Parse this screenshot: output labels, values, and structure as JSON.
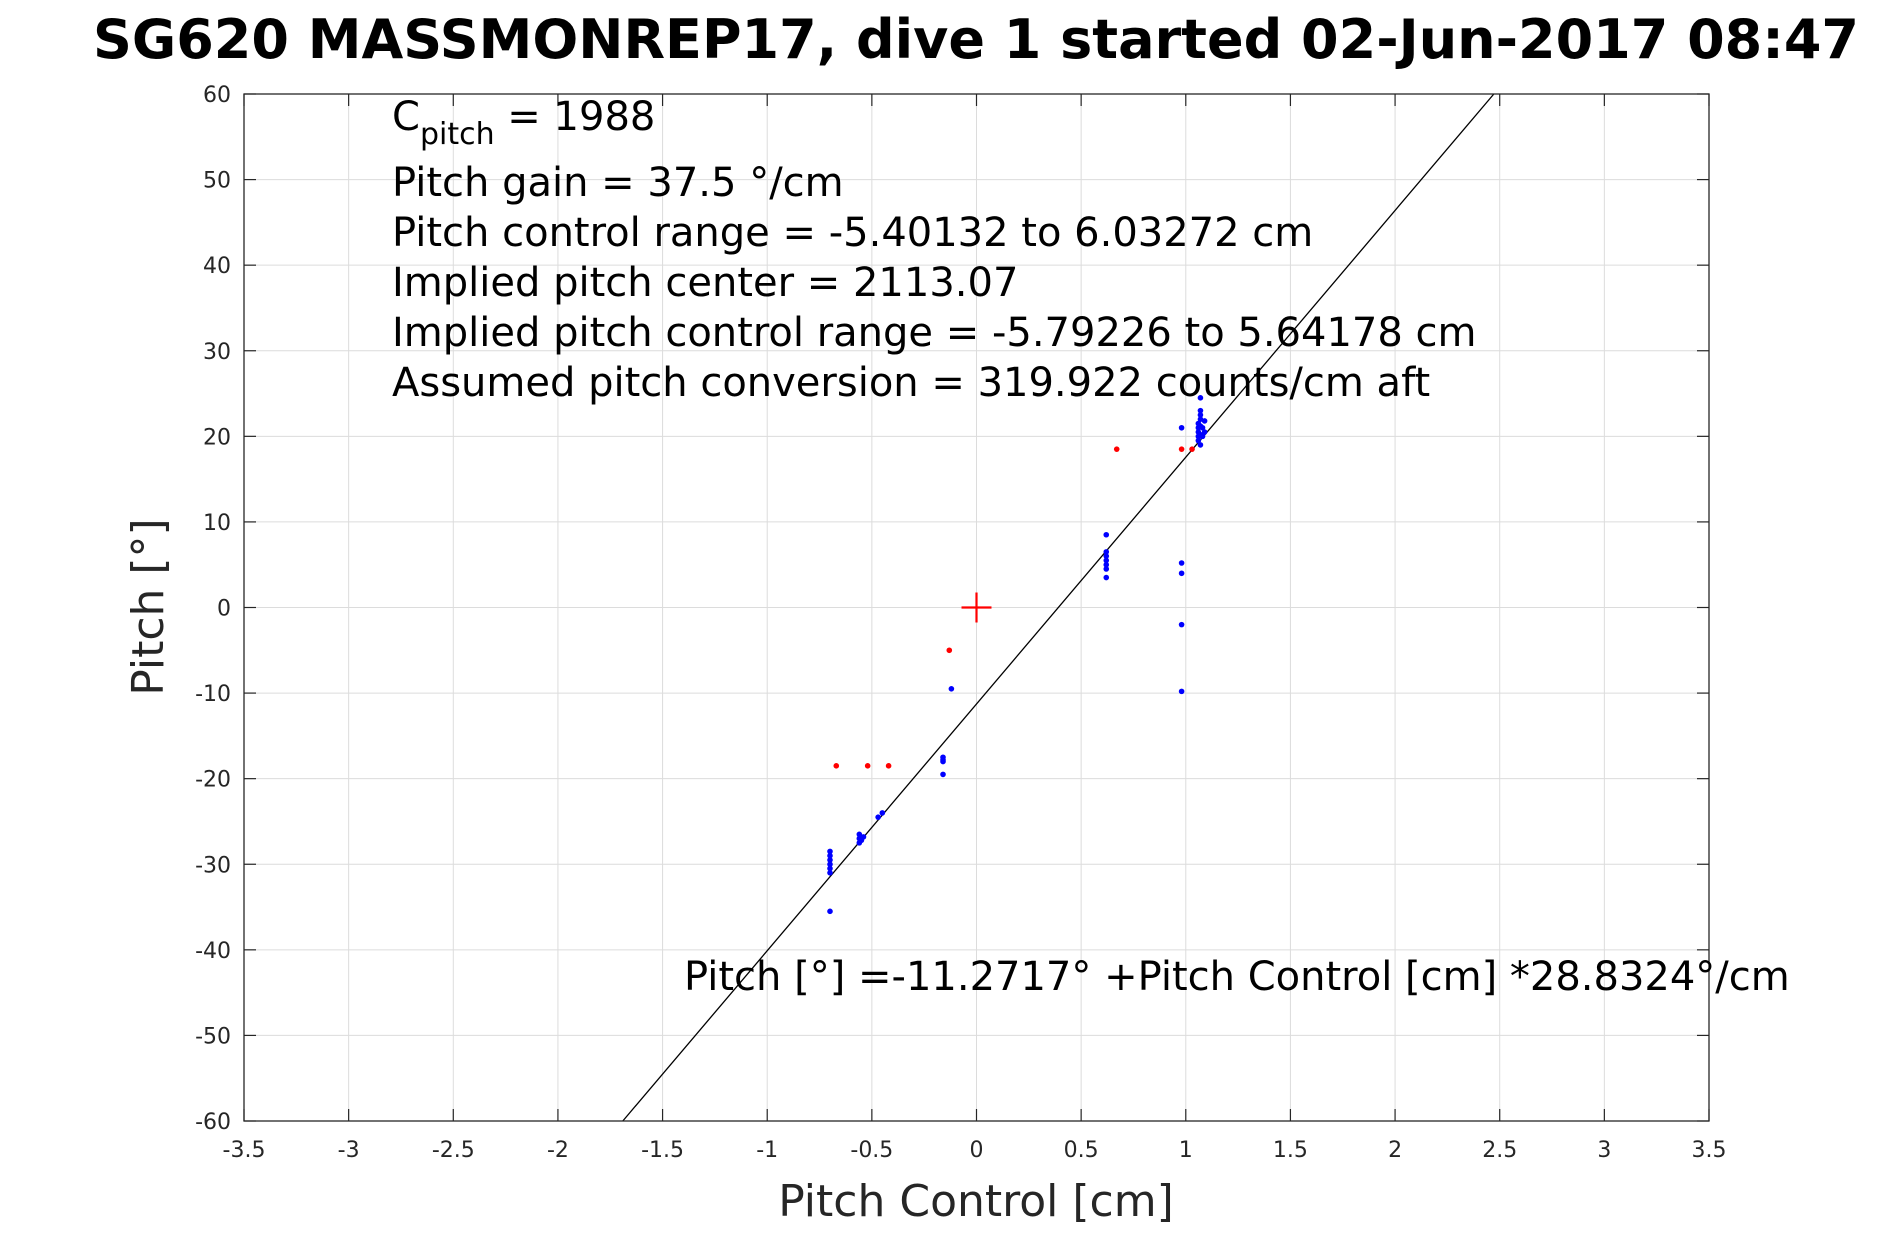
{
  "chart_data": {
    "type": "scatter",
    "title": "SG620 MASSMONREP17, dive 1 started 02-Jun-2017 08:47",
    "xlabel": "Pitch Control [cm]",
    "ylabel": "Pitch [°]",
    "xlim": [
      -3.5,
      3.5
    ],
    "ylim": [
      -60,
      60
    ],
    "xticks": [
      -3.5,
      -3,
      -2.5,
      -2,
      -1.5,
      -1,
      -0.5,
      0,
      0.5,
      1,
      1.5,
      2,
      2.5,
      3,
      3.5
    ],
    "yticks": [
      -60,
      -50,
      -40,
      -30,
      -20,
      -10,
      0,
      10,
      20,
      30,
      40,
      50,
      60
    ],
    "grid": true,
    "colors": {
      "blue_points": "#0000ff",
      "red_points": "#ff0000",
      "fit_line": "#000000",
      "center_marker": "#ff0000"
    },
    "fit_line": {
      "intercept": -11.2717,
      "slope": 28.8324
    },
    "center_marker": {
      "x": 0,
      "y": 0,
      "symbol": "+"
    },
    "series": [
      {
        "color": "#0000ff",
        "points": [
          [
            -0.7,
            -35.5
          ],
          [
            -0.7,
            -31.0
          ],
          [
            -0.7,
            -30.5
          ],
          [
            -0.7,
            -30.0
          ],
          [
            -0.7,
            -29.5
          ],
          [
            -0.7,
            -29.0
          ],
          [
            -0.7,
            -28.5
          ],
          [
            -0.56,
            -27.5
          ],
          [
            -0.56,
            -27.0
          ],
          [
            -0.56,
            -26.5
          ],
          [
            -0.55,
            -27.2
          ],
          [
            -0.54,
            -26.8
          ],
          [
            -0.47,
            -24.5
          ],
          [
            -0.45,
            -24.0
          ],
          [
            -0.16,
            -19.5
          ],
          [
            -0.16,
            -18.0
          ],
          [
            -0.16,
            -17.5
          ],
          [
            -0.16,
            -17.8
          ],
          [
            -0.12,
            -9.5
          ],
          [
            0.62,
            8.5
          ],
          [
            0.62,
            6.5
          ],
          [
            0.62,
            6.0
          ],
          [
            0.62,
            5.5
          ],
          [
            0.62,
            5.0
          ],
          [
            0.62,
            4.5
          ],
          [
            0.62,
            3.5
          ],
          [
            0.98,
            21.0
          ],
          [
            0.98,
            5.2
          ],
          [
            0.98,
            4.0
          ],
          [
            0.98,
            -2.0
          ],
          [
            0.98,
            -9.8
          ],
          [
            1.06,
            19.5
          ],
          [
            1.06,
            20.0
          ],
          [
            1.06,
            20.5
          ],
          [
            1.06,
            21.0
          ],
          [
            1.06,
            21.5
          ],
          [
            1.07,
            19.0
          ],
          [
            1.07,
            20.2
          ],
          [
            1.07,
            21.2
          ],
          [
            1.07,
            22.0
          ],
          [
            1.07,
            22.5
          ],
          [
            1.07,
            23.0
          ],
          [
            1.07,
            24.5
          ],
          [
            1.08,
            20.0
          ],
          [
            1.08,
            21.0
          ],
          [
            1.09,
            20.5
          ],
          [
            1.09,
            21.8
          ]
        ]
      },
      {
        "color": "#ff0000",
        "points": [
          [
            -0.67,
            -18.5
          ],
          [
            -0.52,
            -18.5
          ],
          [
            -0.42,
            -18.5
          ],
          [
            -0.13,
            -5.0
          ],
          [
            0.67,
            18.5
          ],
          [
            0.98,
            18.5
          ],
          [
            1.03,
            18.5
          ]
        ]
      }
    ],
    "annotations": {
      "c_pitch_main": "C",
      "c_pitch_sub": "pitch",
      "c_pitch_value": " = 1988",
      "pitch_gain": "Pitch gain = 37.5 °/cm",
      "control_range": "Pitch control range = -5.40132 to 6.03272 cm",
      "implied_center": "Implied pitch center = 2113.07",
      "implied_range": "Implied pitch control range = -5.79226 to 5.64178 cm",
      "conversion": "Assumed pitch conversion = 319.922 counts/cm aft",
      "fit_equation": "Pitch [°] =-11.2717° +Pitch Control [cm] *28.8324°/cm"
    }
  }
}
